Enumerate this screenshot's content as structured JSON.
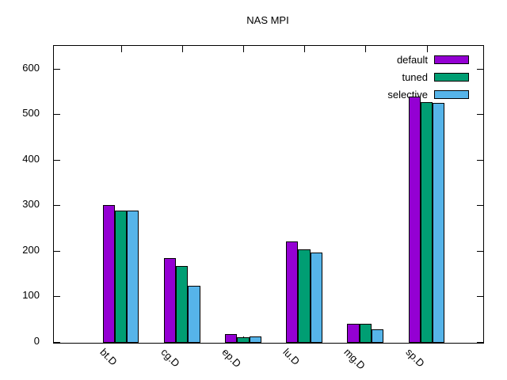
{
  "title": "NAS MPI",
  "chart_data": {
    "type": "bar",
    "title": "NAS MPI",
    "categories": [
      "bt.D",
      "cg.D",
      "ep.D",
      "lu.D",
      "mg.D",
      "sp.D"
    ],
    "series": [
      {
        "name": "default",
        "color": "#9400d3",
        "values": [
          303,
          186,
          19,
          222,
          42,
          541
        ]
      },
      {
        "name": "tuned",
        "color": "#009e73",
        "values": [
          290,
          169,
          13,
          206,
          41,
          528
        ]
      },
      {
        "name": "selective",
        "color": "#56b4e9",
        "values": [
          290,
          125,
          14,
          199,
          30,
          527
        ]
      }
    ],
    "yticks": [
      0,
      100,
      200,
      300,
      400,
      500,
      600
    ],
    "ylim": [
      0,
      652
    ],
    "xlabel": "",
    "ylabel": "",
    "grid": false,
    "legend_position": "top-right-inside",
    "bar_border_color": "#000000",
    "axis_color": "#000000",
    "background_color": "#ffffff"
  }
}
